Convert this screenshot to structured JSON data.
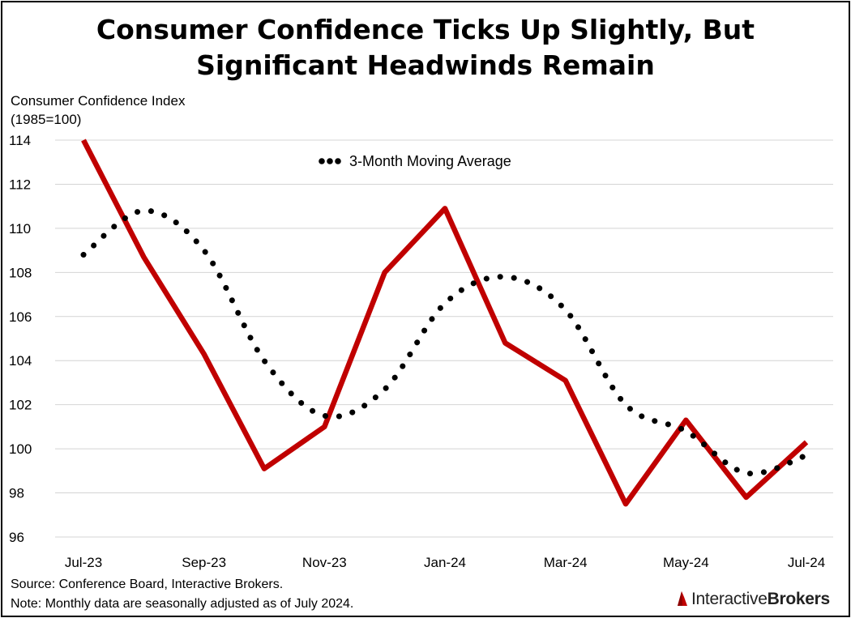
{
  "header": {
    "title_line1": "Consumer Confidence Ticks Up Slightly, But",
    "title_line2": "Significant Headwinds Remain"
  },
  "footer": {
    "source": "Source: Conference Board, Interactive Brokers.",
    "note": "Note: Monthly data are seasonally adjusted as of July 2024.",
    "brand_regular": "Interactive",
    "brand_bold": "Brokers"
  },
  "chart_data": {
    "type": "line",
    "title": "Consumer Confidence Ticks Up Slightly, But Significant Headwinds Remain",
    "ylabel_line1": "Consumer Confidence Index",
    "ylabel_line2": "(1985=100)",
    "xlabel": "",
    "x": [
      "Jul-23",
      "Aug-23",
      "Sep-23",
      "Oct-23",
      "Nov-23",
      "Dec-23",
      "Jan-24",
      "Feb-24",
      "Mar-24",
      "Apr-24",
      "May-24",
      "Jun-24",
      "Jul-24"
    ],
    "x_tick_labels": [
      "Jul-23",
      "Sep-23",
      "Nov-23",
      "Jan-24",
      "Mar-24",
      "May-24",
      "Jul-24"
    ],
    "y_ticks": [
      96,
      98,
      100,
      102,
      104,
      106,
      108,
      110,
      112,
      114
    ],
    "ylim": [
      96,
      114
    ],
    "grid": "horizontal",
    "legend_placement": "top-center",
    "series": [
      {
        "values": [
          114.0,
          108.7,
          104.3,
          99.1,
          101.0,
          108.0,
          110.9,
          104.8,
          103.1,
          97.5,
          101.3,
          97.8,
          100.3
        ],
        "color": "#c00000",
        "style": "solid"
      },
      {
        "name": "3-Month Moving Average",
        "values": [
          108.8,
          110.8,
          109.0,
          104.0,
          101.5,
          102.7,
          106.6,
          107.8,
          106.3,
          102.0,
          100.8,
          98.9,
          99.7
        ],
        "color": "#000000",
        "style": "dotted"
      }
    ]
  }
}
